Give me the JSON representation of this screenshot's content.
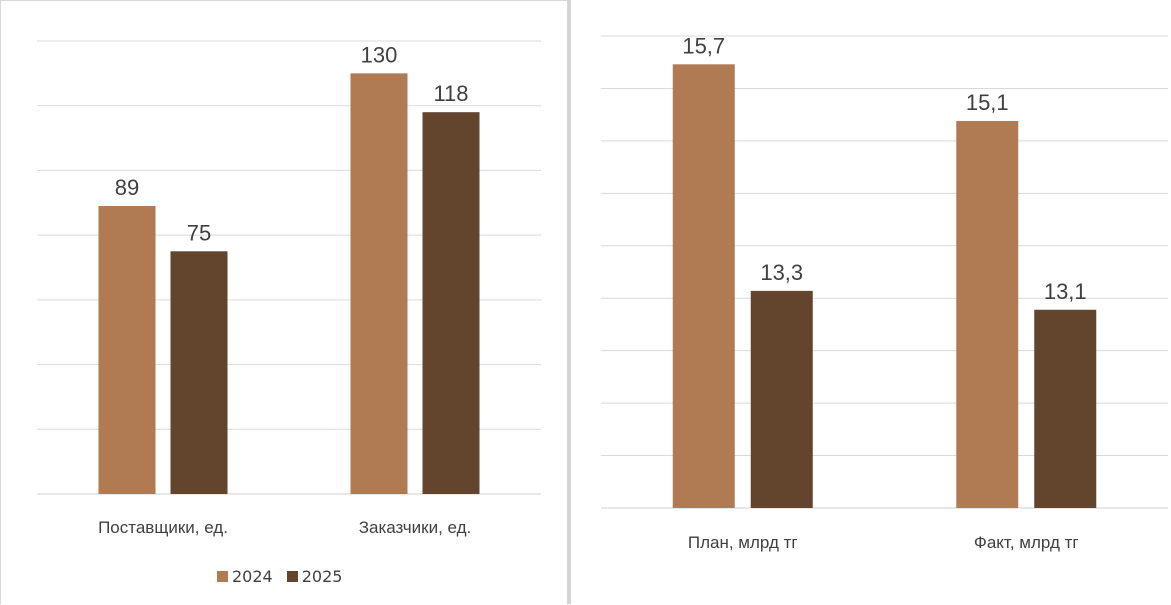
{
  "chart_data": [
    {
      "type": "bar",
      "categories": [
        "Поставщики, ед.",
        "Заказчики, ед."
      ],
      "series": [
        {
          "name": "2024",
          "values": [
            89,
            130
          ],
          "color": "#b07a53",
          "labels": [
            "89",
            "130"
          ]
        },
        {
          "name": "2025",
          "values": [
            75,
            118
          ],
          "color": "#63442d",
          "labels": [
            "75",
            "118"
          ]
        }
      ],
      "ylim": [
        0,
        140
      ],
      "grid": true,
      "legend": "bottom"
    },
    {
      "type": "bar",
      "categories": [
        "План, млрд тг",
        "Факт, млрд тг"
      ],
      "series": [
        {
          "name": "2024",
          "values": [
            15.7,
            15.1
          ],
          "color": "#b07a53",
          "labels": [
            "15,7",
            "15,1"
          ]
        },
        {
          "name": "2025",
          "values": [
            13.3,
            13.1
          ],
          "color": "#63442d",
          "labels": [
            "13,3",
            "13,1"
          ]
        }
      ],
      "ylim": [
        11.0,
        16.0
      ],
      "grid": true,
      "legend": "none"
    }
  ]
}
